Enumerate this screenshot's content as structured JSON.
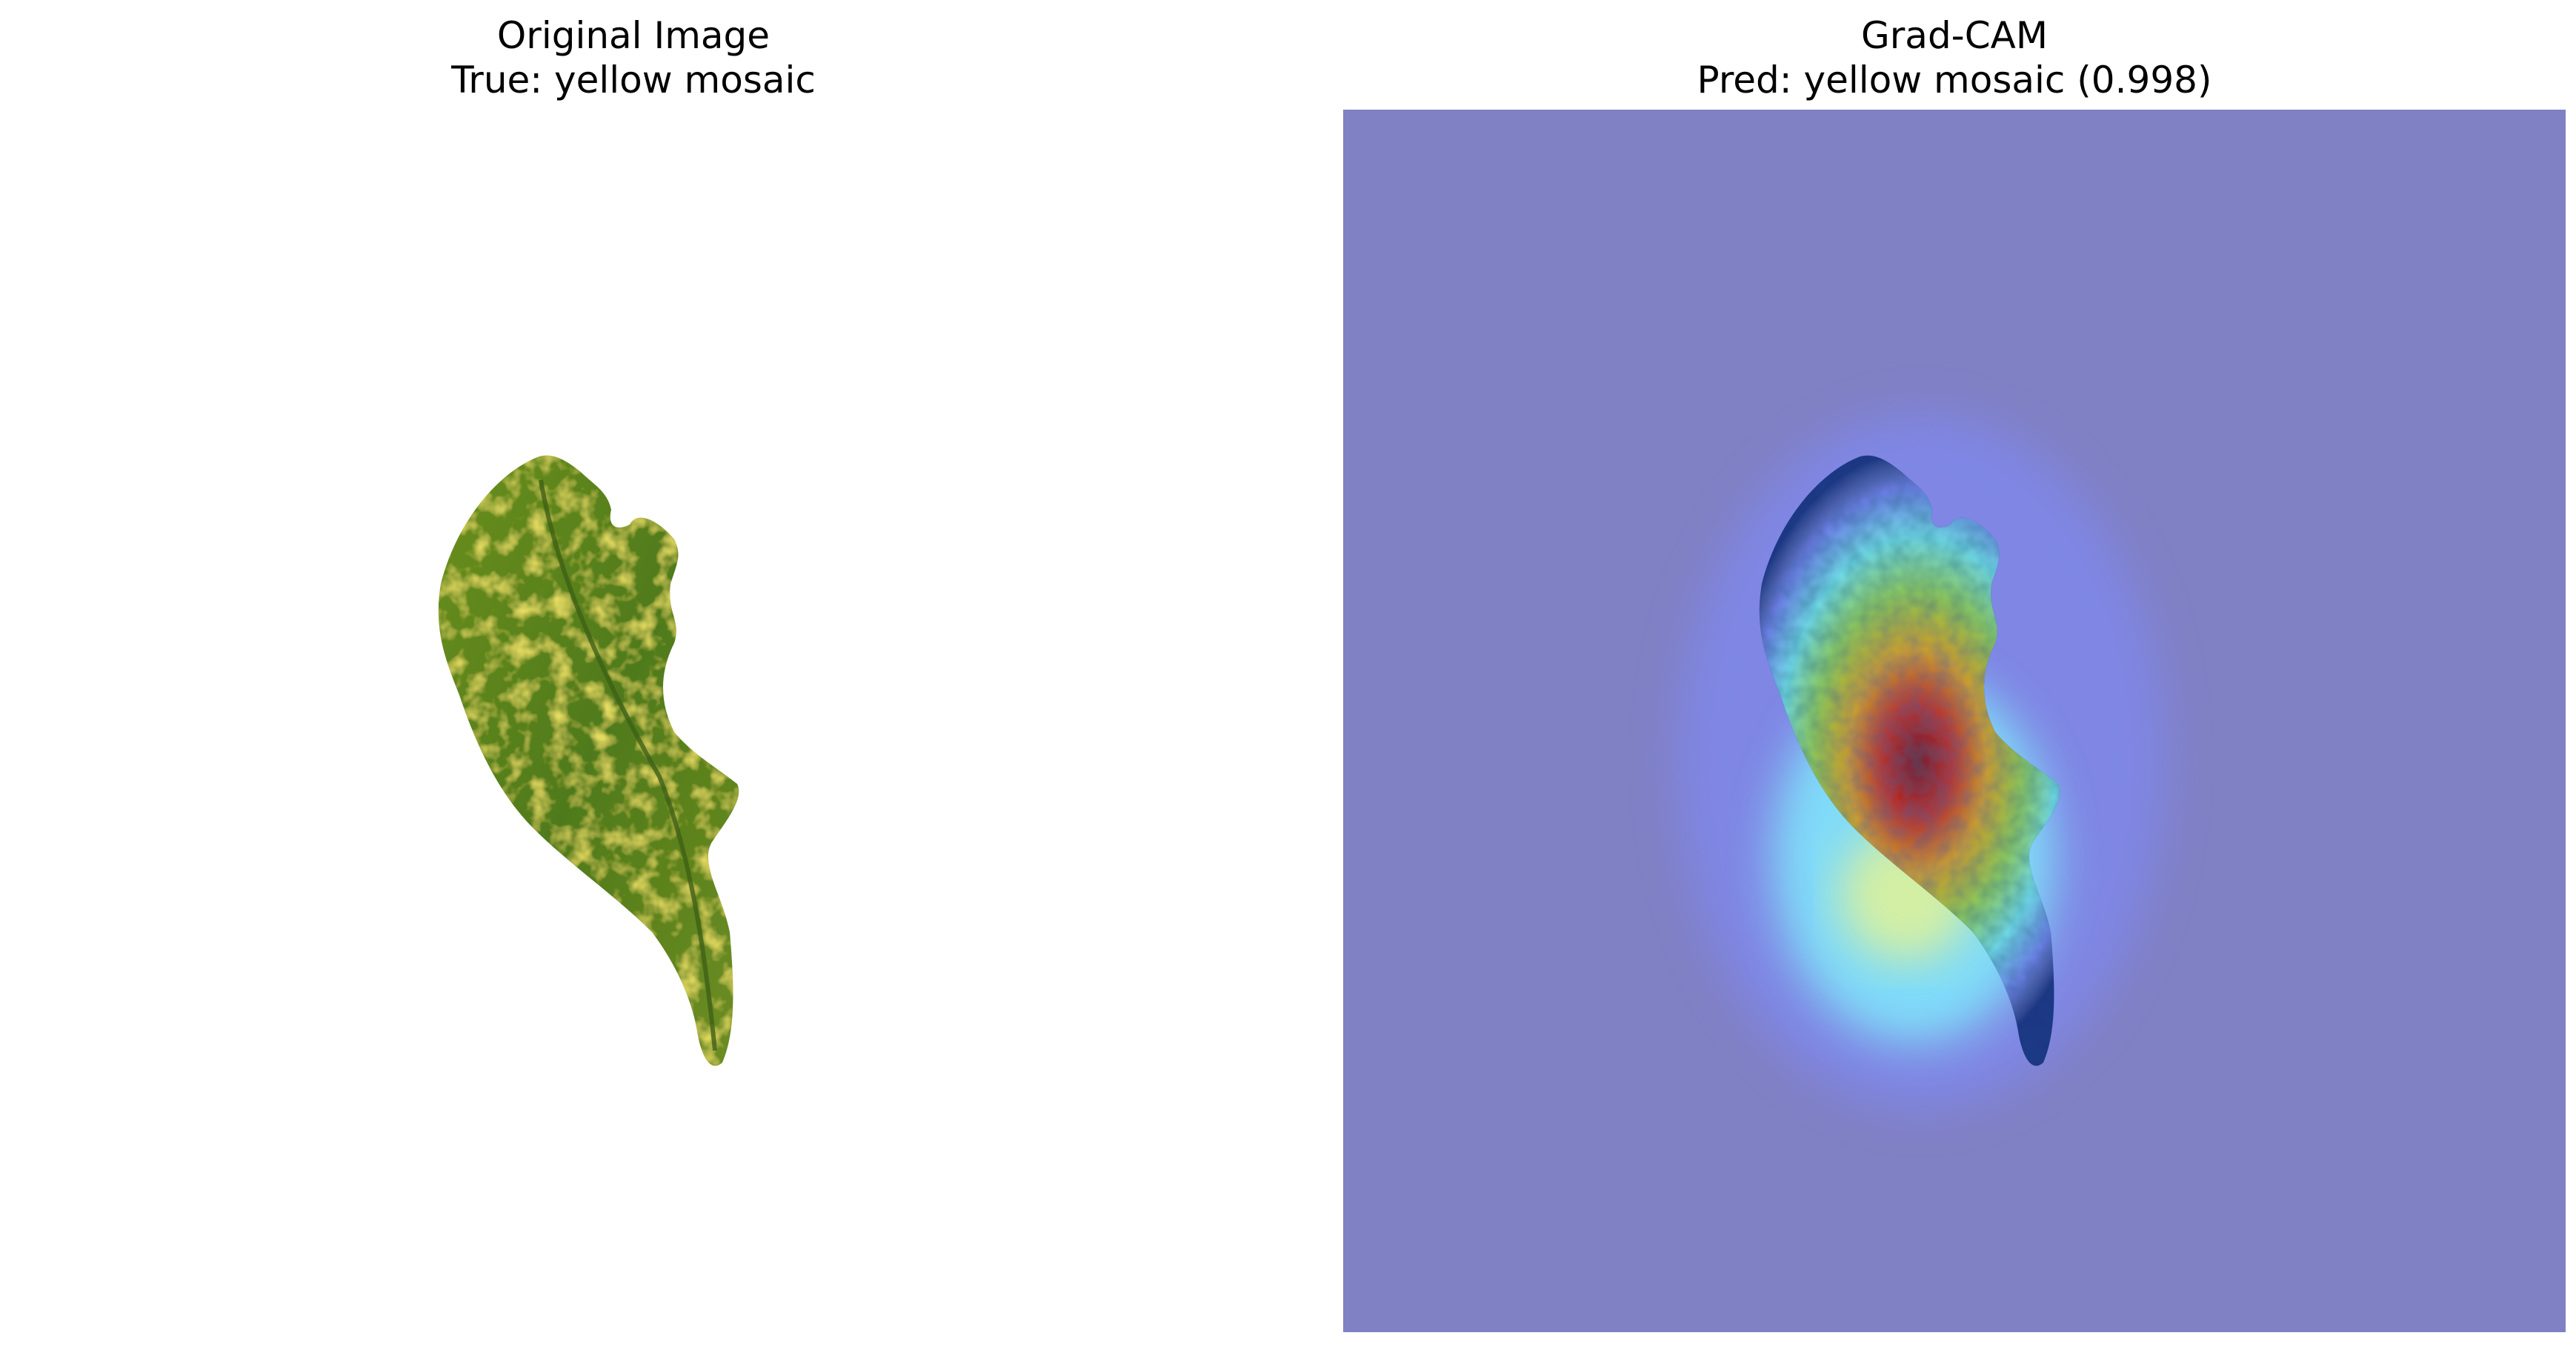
{
  "panels": {
    "original": {
      "title": "Original Image",
      "subtitle": "True: yellow mosaic"
    },
    "gradcam": {
      "title": "Grad-CAM",
      "subtitle": "Pred: yellow mosaic (0.998)"
    }
  },
  "colors": {
    "background": "#ffffff",
    "cam_overlay_base": "#8080c4",
    "leaf_green": "#5c8a1e",
    "leaf_yellow": "#c8b520",
    "cam_hot": "#c03000",
    "cam_warm": "#e8c000",
    "cam_cool": "#7ff0ff"
  }
}
